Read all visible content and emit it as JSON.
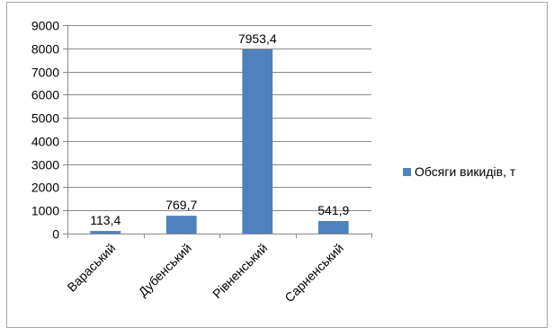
{
  "chart_data": {
    "type": "bar",
    "title": "",
    "xlabel": "",
    "ylabel": "",
    "categories": [
      "Вараський",
      "Дубенський",
      "Рівненський",
      "Сарненський"
    ],
    "series": [
      {
        "name": "Обсяги викидів, т",
        "values": [
          113.4,
          769.7,
          7953.4,
          541.9
        ],
        "color": "#4F81BD"
      }
    ],
    "data_labels": [
      "113,4",
      "769,7",
      "7953,4",
      "541,9"
    ],
    "ylim": [
      0,
      9000
    ],
    "yticks": [
      0,
      1000,
      2000,
      3000,
      4000,
      5000,
      6000,
      7000,
      8000,
      9000
    ],
    "ytick_labels": [
      "0",
      "1000",
      "2000",
      "3000",
      "4000",
      "5000",
      "6000",
      "7000",
      "8000",
      "9000"
    ],
    "grid": true,
    "legend_position": "right"
  },
  "colors": {
    "bar": "#4F81BD",
    "grid": "#898989",
    "frame": "#a6a6a6"
  }
}
